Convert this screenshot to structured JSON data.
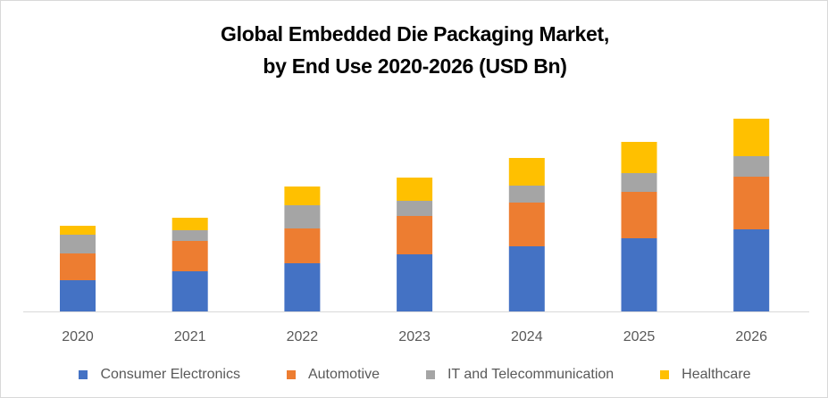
{
  "chart_data": {
    "type": "bar",
    "stacked": true,
    "title": "Global  Embedded Die Packaging Market,",
    "subtitle": "by End Use 2020-2026 (USD Bn)",
    "xlabel": "",
    "ylabel": "",
    "categories": [
      "2020",
      "2021",
      "2022",
      "2023",
      "2024",
      "2025",
      "2026"
    ],
    "series": [
      {
        "name": "Consumer Electronics",
        "color": "#4472C4",
        "values": [
          3.5,
          4.5,
          5.4,
          6.4,
          7.3,
          8.2,
          9.2
        ]
      },
      {
        "name": "Automotive",
        "color": "#ED7D31",
        "values": [
          3.0,
          3.4,
          3.9,
          4.3,
          4.9,
          5.2,
          5.9
        ]
      },
      {
        "name": "IT and Telecommunication",
        "color": "#A5A5A5",
        "values": [
          2.1,
          1.2,
          2.6,
          1.7,
          1.9,
          2.1,
          2.3
        ]
      },
      {
        "name": "Healthcare",
        "color": "#FFC000",
        "values": [
          1.0,
          1.4,
          2.1,
          2.6,
          3.1,
          3.5,
          4.2
        ]
      }
    ],
    "ylim": [
      0,
      22
    ],
    "grid": false,
    "legend": "bottom"
  }
}
